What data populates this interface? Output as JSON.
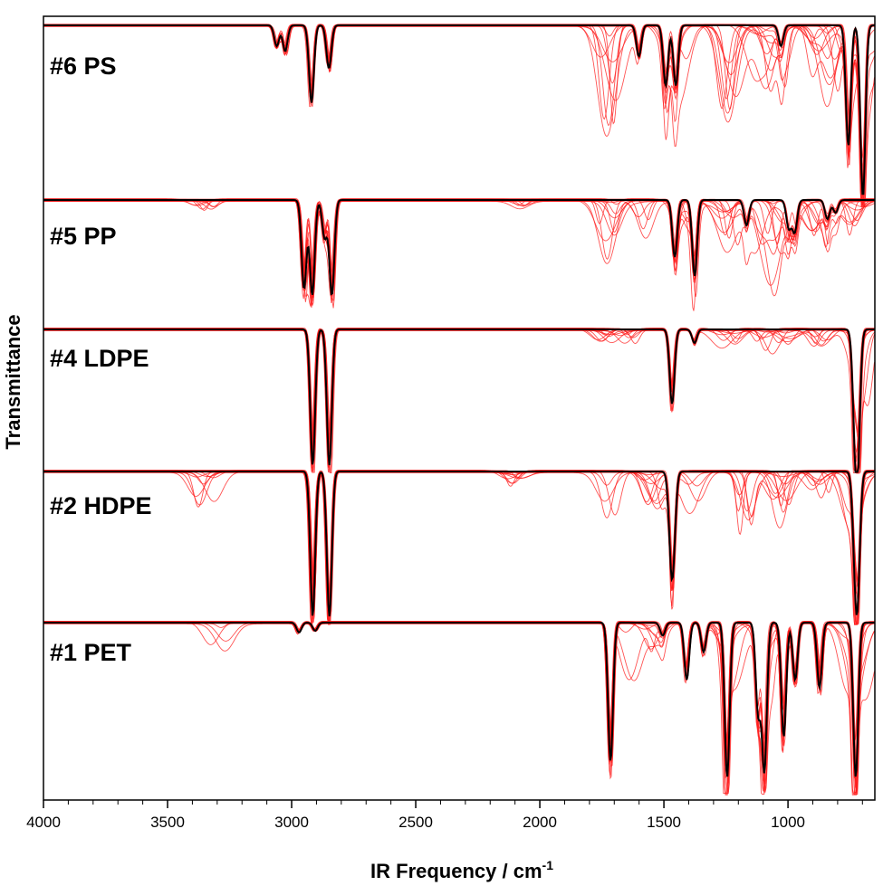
{
  "chart_data": {
    "type": "line",
    "title": "",
    "xlabel": "IR Frequency / cm",
    "xlabel_superscript": "-1",
    "ylabel": "Transmittance",
    "xlim": [
      4000,
      650
    ],
    "x_reversed": true,
    "x_ticks": [
      4000,
      3500,
      3000,
      2500,
      2000,
      1500,
      1000
    ],
    "grid": false,
    "legend": "none",
    "colors": {
      "replicates": "#ff1a1a",
      "reference": "#000000"
    },
    "series": [
      {
        "name": "#6 PS",
        "peaks": [
          [
            3060,
            0.12
          ],
          [
            3026,
            0.15
          ],
          [
            2920,
            0.45
          ],
          [
            2850,
            0.25
          ],
          [
            1601,
            0.18
          ],
          [
            1493,
            0.35
          ],
          [
            1452,
            0.35
          ],
          [
            1028,
            0.12
          ],
          [
            757,
            0.7
          ],
          [
            698,
            1.0
          ]
        ],
        "replicate_peaks": [
          [
            1725,
            0.8
          ],
          [
            1450,
            0.5
          ],
          [
            1240,
            0.6
          ],
          [
            1100,
            0.45
          ],
          [
            1050,
            0.4
          ],
          [
            870,
            0.35
          ],
          [
            800,
            0.4
          ],
          [
            700,
            0.6
          ]
        ]
      },
      {
        "name": "#5 PP",
        "peaks": [
          [
            2950,
            0.7
          ],
          [
            2917,
            0.75
          ],
          [
            2867,
            0.3
          ],
          [
            2838,
            0.75
          ],
          [
            1456,
            0.45
          ],
          [
            1376,
            0.6
          ],
          [
            1167,
            0.2
          ],
          [
            997,
            0.22
          ],
          [
            973,
            0.25
          ],
          [
            841,
            0.15
          ],
          [
            808,
            0.1
          ]
        ],
        "replicate_peaks": [
          [
            1725,
            0.55
          ],
          [
            1600,
            0.3
          ],
          [
            1420,
            0.6
          ],
          [
            1240,
            0.45
          ],
          [
            1100,
            0.5
          ],
          [
            1020,
            0.45
          ],
          [
            870,
            0.3
          ],
          [
            720,
            0.35
          ],
          [
            3350,
            0.08
          ],
          [
            2100,
            0.06
          ]
        ]
      },
      {
        "name": "#4 LDPE",
        "peaks": [
          [
            2915,
            1.0
          ],
          [
            2848,
            1.0
          ],
          [
            1467,
            0.55
          ],
          [
            1377,
            0.1
          ],
          [
            730,
            0.55
          ],
          [
            719,
            0.85
          ]
        ],
        "replicate_peaks": [
          [
            1740,
            0.12
          ],
          [
            1640,
            0.1
          ],
          [
            1240,
            0.15
          ],
          [
            1100,
            0.18
          ],
          [
            1020,
            0.15
          ],
          [
            870,
            0.12
          ],
          [
            720,
            0.6
          ]
        ]
      },
      {
        "name": "#2 HDPE",
        "peaks": [
          [
            2915,
            1.0
          ],
          [
            2848,
            1.0
          ],
          [
            1472,
            0.4
          ],
          [
            1462,
            0.45
          ],
          [
            730,
            0.45
          ],
          [
            719,
            0.7
          ]
        ],
        "replicate_peaks": [
          [
            3350,
            0.28
          ],
          [
            1725,
            0.5
          ],
          [
            1540,
            0.3
          ],
          [
            1400,
            0.3
          ],
          [
            1160,
            0.5
          ],
          [
            1030,
            0.45
          ],
          [
            870,
            0.3
          ],
          [
            720,
            0.5
          ],
          [
            2100,
            0.1
          ]
        ]
      },
      {
        "name": "#1 PET",
        "peaks": [
          [
            2970,
            0.06
          ],
          [
            2905,
            0.05
          ],
          [
            1715,
            0.85
          ],
          [
            1505,
            0.08
          ],
          [
            1408,
            0.35
          ],
          [
            1340,
            0.18
          ],
          [
            1245,
            0.95
          ],
          [
            1120,
            0.55
          ],
          [
            1095,
            0.9
          ],
          [
            1017,
            0.7
          ],
          [
            971,
            0.35
          ],
          [
            873,
            0.4
          ],
          [
            727,
            0.95
          ]
        ],
        "replicate_peaks": [
          [
            3300,
            0.18
          ],
          [
            1640,
            0.4
          ],
          [
            1540,
            0.35
          ],
          [
            1250,
            0.6
          ],
          [
            1100,
            0.5
          ],
          [
            720,
            0.5
          ]
        ]
      }
    ]
  }
}
